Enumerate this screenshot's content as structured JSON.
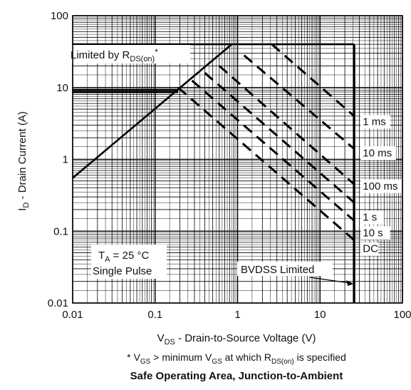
{
  "chart_data": {
    "type": "line",
    "title": "Safe Operating Area, Junction-to-Ambient",
    "footnote": {
      "star": "*",
      "pre": "V",
      "sub1": "GS",
      "mid": " > minimum V",
      "sub2": "GS",
      "mid2": " at which R",
      "sub3": "DS(on)",
      "post": " is specified"
    },
    "xlabel": {
      "main": "V",
      "sub": "DS",
      "rest": " - Drain-to-Source Voltage (V)"
    },
    "ylabel": {
      "main": "I",
      "sub": "D",
      "rest": " - Drain Current (A)"
    },
    "x_scale": "log",
    "y_scale": "log",
    "xlim": [
      0.01,
      100
    ],
    "ylim": [
      0.01,
      100
    ],
    "grid": true,
    "x_ticks": [
      {
        "value": 0.01,
        "label": "0.01"
      },
      {
        "value": 0.1,
        "label": "0.1"
      },
      {
        "value": 1,
        "label": "1"
      },
      {
        "value": 10,
        "label": "10"
      },
      {
        "value": 100,
        "label": "100"
      }
    ],
    "y_ticks": [
      {
        "value": 0.01,
        "label": "0.01"
      },
      {
        "value": 0.1,
        "label": "0.1"
      },
      {
        "value": 1,
        "label": "1"
      },
      {
        "value": 10,
        "label": "10"
      },
      {
        "value": 100,
        "label": "100"
      }
    ],
    "rds_limit_line": {
      "points": [
        [
          0.01,
          0.55
        ],
        [
          0.85,
          40
        ]
      ]
    },
    "current_limits": [
      {
        "value": 40,
        "x_from": 0.01,
        "x_to": 26
      },
      {
        "value": 9.3,
        "x_from": 0.01,
        "x_to": 0.19
      },
      {
        "value": 8.6,
        "x_from": 0.01,
        "x_to": 0.19
      }
    ],
    "bvdss_voltage": 26,
    "series": [
      {
        "name": "1 ms",
        "x": [
          2.6,
          26
        ],
        "y": [
          40,
          4.0
        ]
      },
      {
        "name": "10 ms",
        "x": [
          1.2,
          26
        ],
        "y": [
          28,
          1.4
        ]
      },
      {
        "name": "100 ms",
        "x": [
          0.6,
          26
        ],
        "y": [
          20,
          0.45
        ]
      },
      {
        "name": "1 s",
        "x": [
          0.4,
          26
        ],
        "y": [
          16,
          0.25
        ]
      },
      {
        "name": "10 s",
        "x": [
          0.28,
          26
        ],
        "y": [
          12.5,
          0.14
        ]
      },
      {
        "name": "DC",
        "x": [
          0.19,
          26
        ],
        "y": [
          10,
          0.075
        ]
      }
    ],
    "series_labels": [
      {
        "text": "1 ms",
        "x": 33,
        "y": 3.0
      },
      {
        "text": "10 ms",
        "x": 33,
        "y": 1.1
      },
      {
        "text": "100 ms",
        "x": 33,
        "y": 0.38
      },
      {
        "text": "1 s",
        "x": 33,
        "y": 0.14
      },
      {
        "text": "10 s",
        "x": 33,
        "y": 0.085
      },
      {
        "text": "DC",
        "x": 33,
        "y": 0.051
      }
    ],
    "annotations": {
      "rds": {
        "pre": "Limited by R",
        "sub": "DS(on)",
        "post": "*"
      },
      "ta": {
        "pre": "T",
        "sub": "A",
        "post": " = 25 °C"
      },
      "single_pulse": "Single Pulse",
      "bvdss": "BVDSS Limited"
    },
    "colors": {
      "lines": "#000000",
      "grid": "#000000",
      "text": "#111111",
      "background": "#ffffff"
    }
  }
}
